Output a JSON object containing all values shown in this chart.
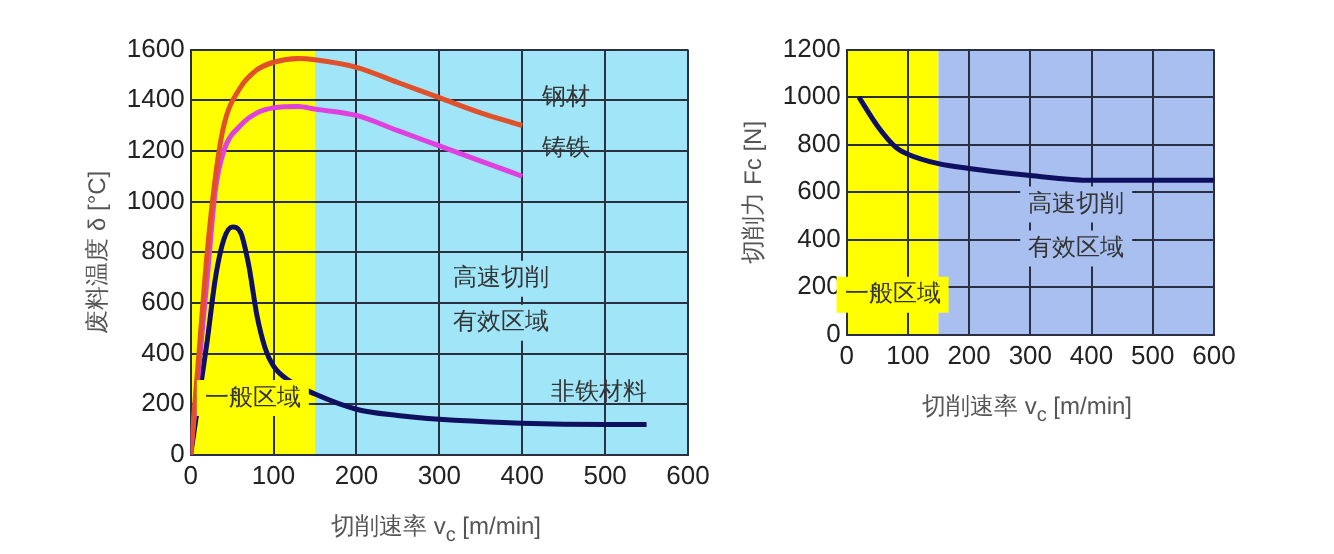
{
  "chart_data": [
    {
      "type": "line",
      "xlabel": "切削速率 v$_{c}$ [m/min]",
      "ylabel": "废料温度 δ [°C]",
      "xlim": [
        0,
        600
      ],
      "xticks": [
        0,
        100,
        200,
        300,
        400,
        500,
        600
      ],
      "ylim": [
        0,
        1600
      ],
      "yticks": [
        0,
        200,
        400,
        600,
        800,
        1000,
        1200,
        1400,
        1600
      ],
      "grid": true,
      "legend": false,
      "series": [
        {
          "name": "钢材",
          "color": "#e0502a",
          "x": [
            0,
            10,
            20,
            30,
            40,
            60,
            80,
            100,
            130,
            150,
            200,
            250,
            300,
            350,
            400
          ],
          "values": [
            0,
            400,
            800,
            1100,
            1300,
            1450,
            1520,
            1550,
            1565,
            1560,
            1530,
            1470,
            1410,
            1350,
            1300
          ]
        },
        {
          "name": "铸铁",
          "color": "#e040e0",
          "x": [
            0,
            20,
            30,
            40,
            60,
            80,
            100,
            130,
            150,
            200,
            250,
            300,
            350,
            400
          ],
          "values": [
            0,
            700,
            1050,
            1200,
            1300,
            1350,
            1370,
            1375,
            1365,
            1340,
            1280,
            1220,
            1160,
            1100
          ]
        },
        {
          "name": "非铁材料",
          "color": "#101060",
          "x": [
            0,
            20,
            30,
            40,
            50,
            60,
            70,
            80,
            90,
            100,
            120,
            150,
            200,
            250,
            300,
            400,
            500,
            550
          ],
          "values": [
            0,
            450,
            700,
            850,
            900,
            880,
            750,
            550,
            420,
            350,
            290,
            240,
            180,
            155,
            140,
            125,
            120,
            120
          ]
        }
      ],
      "bands": [
        {
          "axis": "x",
          "from": 0,
          "to": 150,
          "label": "一般区域",
          "color": "#ffff00"
        },
        {
          "axis": "x",
          "from": 150,
          "to": 600,
          "label": "高速切削有效区域",
          "color": "#a0e6f8"
        }
      ]
    },
    {
      "type": "line",
      "xlabel": "切削速率 v$_{c}$ [m/min]",
      "ylabel": "切削力 Fc [N]",
      "xlim": [
        0,
        600
      ],
      "xticks": [
        0,
        100,
        200,
        300,
        400,
        500,
        600
      ],
      "ylim": [
        0,
        1200
      ],
      "yticks": [
        0,
        200,
        400,
        600,
        800,
        1000,
        1200
      ],
      "grid": true,
      "legend": false,
      "series": [
        {
          "color": "#101060",
          "x": [
            20,
            50,
            80,
            100,
            150,
            200,
            300,
            400,
            500,
            600
          ],
          "values": [
            1000,
            880,
            790,
            760,
            720,
            700,
            670,
            650,
            650,
            650
          ]
        }
      ],
      "bands": [
        {
          "axis": "x",
          "from": 0,
          "to": 150,
          "label": "一般区域",
          "color": "#ffff00"
        },
        {
          "axis": "x",
          "from": 150,
          "to": 600,
          "label": "高速切削有效区域",
          "color": "#a8bff0"
        }
      ]
    }
  ]
}
